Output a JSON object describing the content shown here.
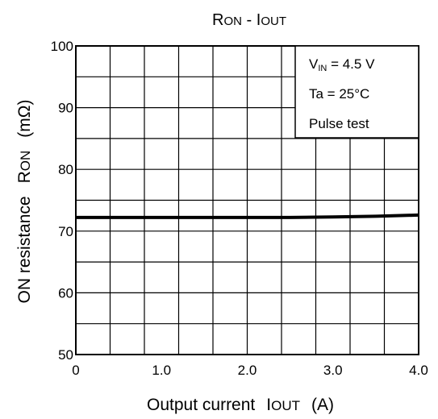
{
  "chart_data": {
    "type": "line",
    "title": {
      "main": "R",
      "sub": "ON",
      "sep": " - ",
      "main2": "I",
      "sub2": "OUT"
    },
    "xlabel": {
      "text": "Output current",
      "sym_main": "I",
      "sym_sub": "OUT",
      "unit": "(A)"
    },
    "ylabel": {
      "text": "ON resistance",
      "sym_main": "R",
      "sym_sub": "ON",
      "unit": "(mΩ)"
    },
    "xlim": [
      0,
      4.0
    ],
    "ylim": [
      50,
      100
    ],
    "x_ticks": [
      0,
      1.0,
      2.0,
      3.0,
      4.0
    ],
    "x_tick_labels": [
      "0",
      "1.0",
      "2.0",
      "3.0",
      "4.0"
    ],
    "y_ticks": [
      50,
      60,
      70,
      80,
      90,
      100
    ],
    "y_tick_labels": [
      "50",
      "60",
      "70",
      "80",
      "90",
      "100"
    ],
    "grid": true,
    "grid_x_step": 0.4,
    "grid_y_step": 5,
    "conditions_box": {
      "placement": "top-right",
      "lines": [
        {
          "main": "V",
          "sub": "IN",
          "rest": " = 4.5 V"
        },
        {
          "main": "Ta = 25°C",
          "sub": "",
          "rest": ""
        },
        {
          "main": "Pulse test",
          "sub": "",
          "rest": ""
        }
      ]
    },
    "series": [
      {
        "x": [
          0,
          0.5,
          1.0,
          1.5,
          2.0,
          2.5,
          3.0,
          3.5,
          4.0
        ],
        "y": [
          72.2,
          72.2,
          72.2,
          72.2,
          72.2,
          72.2,
          72.3,
          72.4,
          72.6
        ]
      }
    ]
  }
}
